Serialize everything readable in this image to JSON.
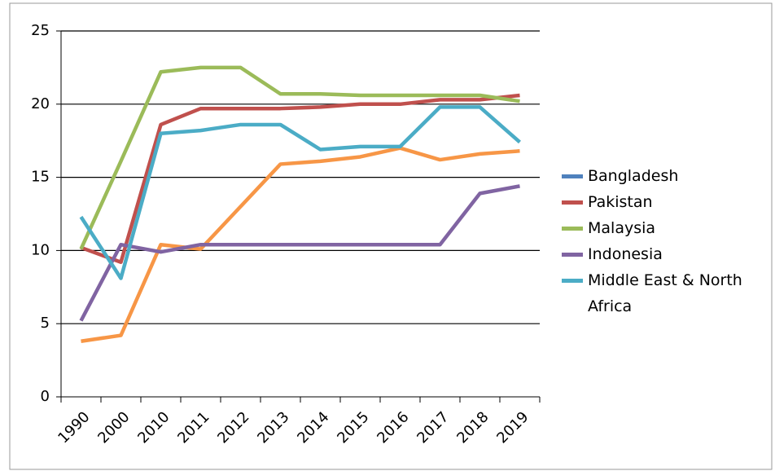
{
  "chart_data": {
    "type": "line",
    "categories": [
      "1990",
      "2000",
      "2010",
      "2011",
      "2012",
      "2013",
      "2014",
      "2015",
      "2016",
      "2017",
      "2018",
      "2019"
    ],
    "series": [
      {
        "name": "Bangladesh",
        "color": "#4f81bd",
        "values": [
          null,
          null,
          null,
          null,
          null,
          null,
          null,
          null,
          null,
          null,
          null,
          null
        ]
      },
      {
        "name": "Pakistan",
        "color": "#c0504d",
        "values": [
          10.2,
          9.2,
          18.6,
          19.7,
          19.7,
          19.7,
          19.8,
          20.0,
          20.0,
          20.3,
          20.3,
          20.6
        ]
      },
      {
        "name": "Malaysia",
        "color": "#9bbb59",
        "values": [
          10.1,
          16.1,
          22.2,
          22.5,
          22.5,
          20.7,
          20.7,
          20.6,
          20.6,
          20.6,
          20.6,
          20.2
        ]
      },
      {
        "name": "Indonesia",
        "color": "#8064a2",
        "values": [
          5.2,
          10.4,
          9.9,
          10.4,
          10.4,
          10.4,
          10.4,
          10.4,
          10.4,
          10.4,
          13.9,
          14.4
        ]
      },
      {
        "name": "Middle East & North Africa",
        "color": "#4bacc6",
        "values": [
          12.3,
          8.1,
          18.0,
          18.2,
          18.6,
          18.6,
          16.9,
          17.1,
          17.1,
          19.8,
          19.8,
          17.4
        ]
      },
      {
        "color": "#f79646",
        "values": [
          3.8,
          4.2,
          10.4,
          10.1,
          13.0,
          15.9,
          16.1,
          16.4,
          17.0,
          16.2,
          16.6,
          16.8
        ]
      }
    ],
    "ylim": [
      0,
      25
    ],
    "yticks": [
      0,
      5,
      10,
      15,
      20,
      25
    ],
    "grid": true,
    "legend": "right"
  }
}
